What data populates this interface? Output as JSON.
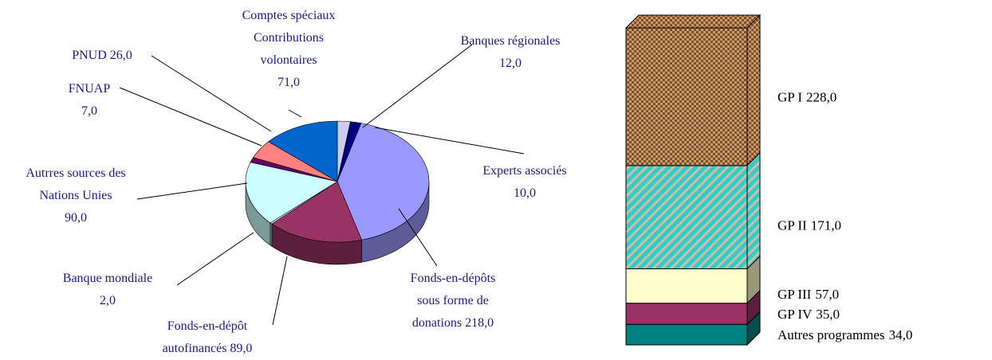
{
  "chart_data": [
    {
      "type": "pie3d",
      "categories": [
        "Banques régionales",
        "Experts associés",
        "Fonds-en-dépôts sous forme de donations",
        "Fonds-en-dépôt autofinancés",
        "Banque mondiale",
        "Autrres sources des Nations Unies",
        "FNUAP",
        "PNUD",
        "Comptes spéciaux Contributions volontaires"
      ],
      "values": [
        12,
        10,
        218,
        89,
        2,
        90,
        7,
        26,
        71
      ],
      "value_labels": [
        "12,0",
        "10,0",
        "218,0",
        "89,0",
        "2,0",
        "90,0",
        "7,0",
        "26,0",
        "71,0"
      ],
      "colors": [
        "#ccccee",
        "#000080",
        "#9999ff",
        "#993366",
        "#e0ffff",
        "#ccffff",
        "#660066",
        "#ff8080",
        "#0066cc"
      ]
    },
    {
      "type": "stacked_bar3d",
      "series": [
        {
          "name": "Autres programmes",
          "color": "#008080",
          "values": [
            34
          ],
          "value_labels": [
            "34,0"
          ]
        },
        {
          "name": "GP IV",
          "color": "#993366",
          "values": [
            35
          ],
          "value_labels": [
            "35,0"
          ]
        },
        {
          "name": "GP III",
          "color": "#ffffcc",
          "values": [
            57
          ],
          "value_labels": [
            "57,0"
          ]
        },
        {
          "name": "GP II",
          "color": "#33cccc",
          "pattern": "diagonal",
          "values": [
            171
          ],
          "value_labels": [
            "171,0"
          ]
        },
        {
          "name": "GP I",
          "color": "#cc9966",
          "pattern": "checker",
          "values": [
            228
          ],
          "value_labels": [
            "228,0"
          ]
        }
      ]
    }
  ]
}
